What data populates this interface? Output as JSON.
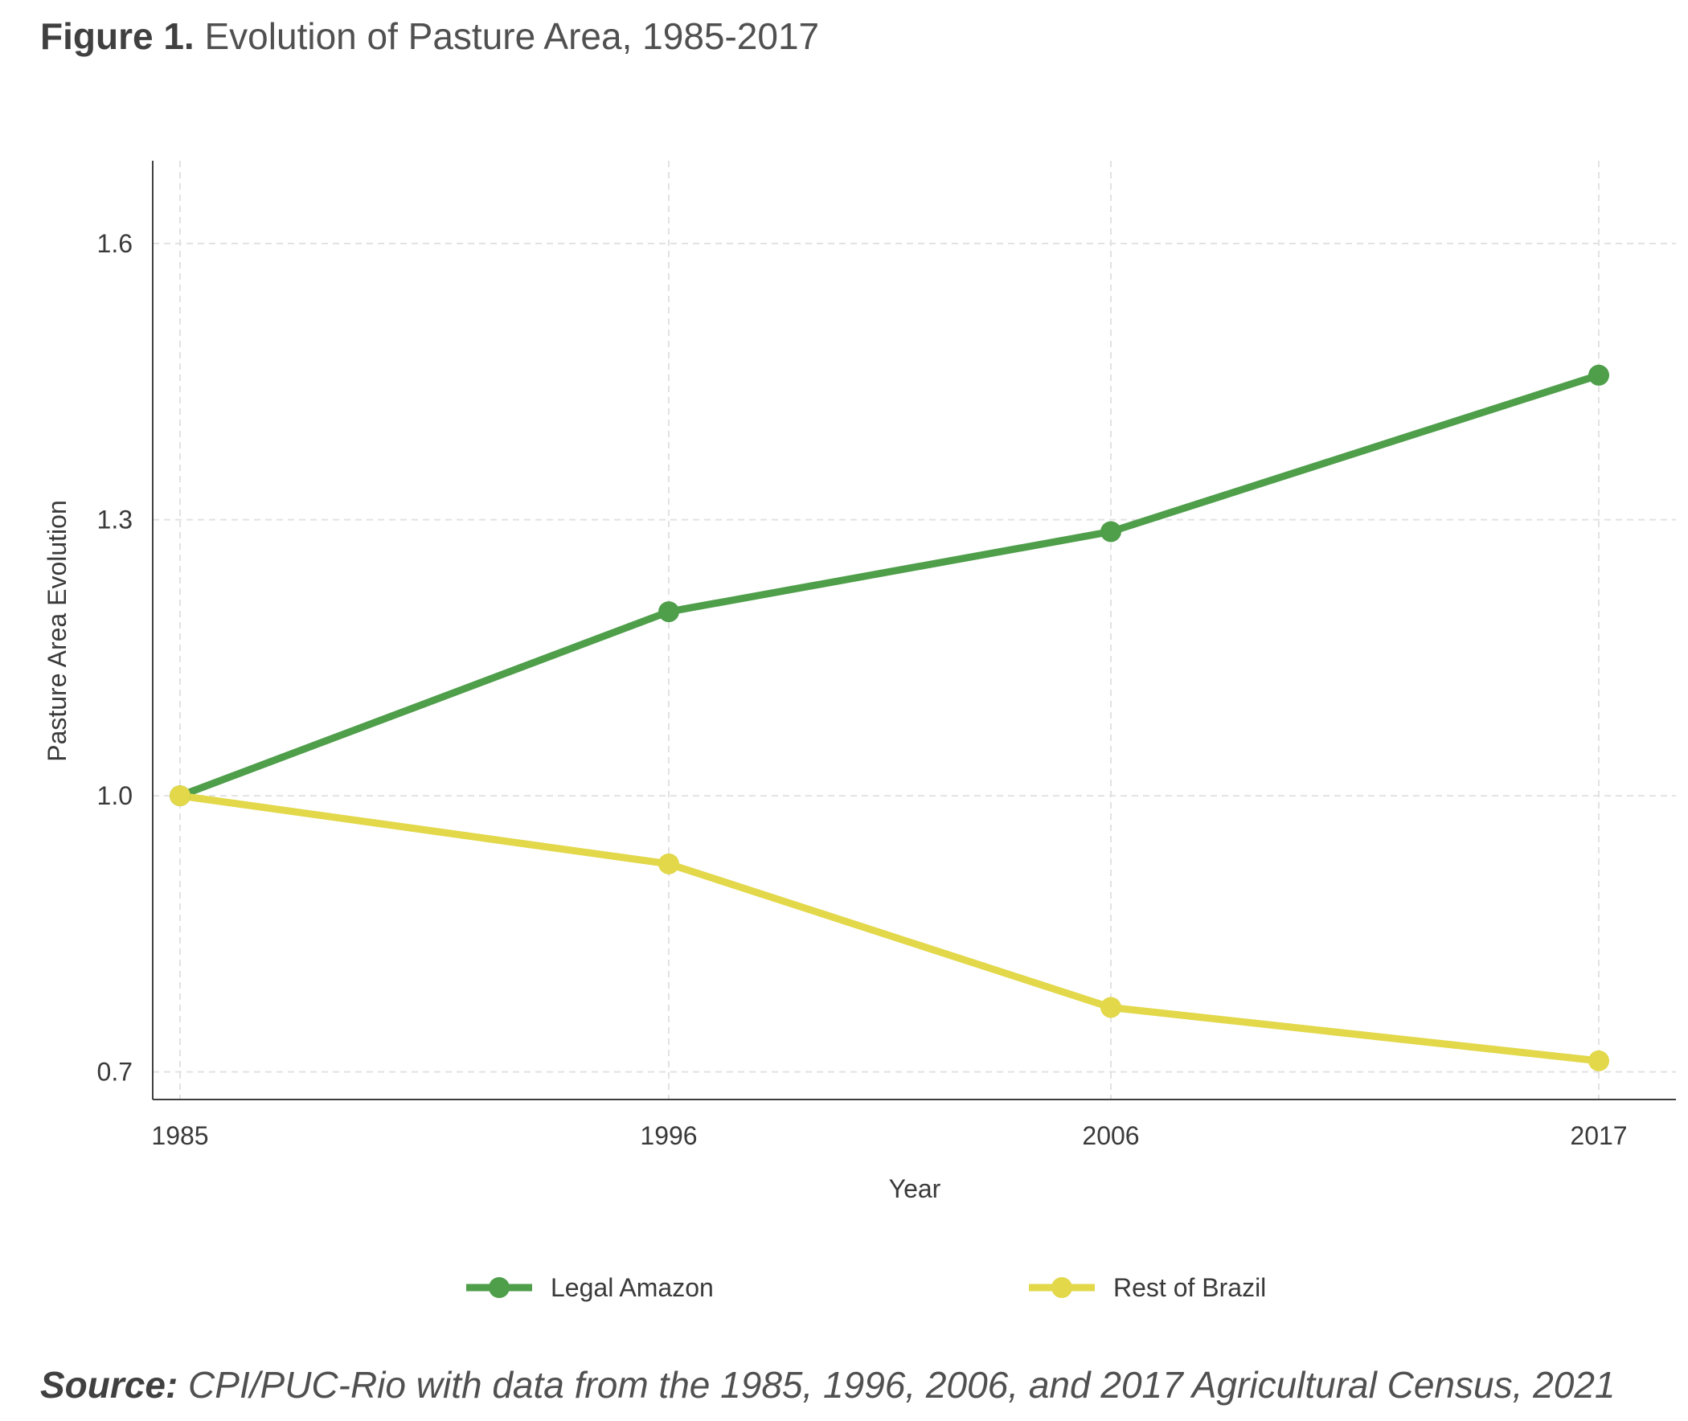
{
  "figure": {
    "label": "Figure 1.",
    "title_text": " Evolution of Pasture Area, 1985-2017"
  },
  "source": {
    "label": "Source:",
    "text": " CPI/PUC-Rio with data from the 1985, 1996, 2006, and 2017 Agricultural Census, 2021"
  },
  "chart_data": {
    "type": "line",
    "title": "Evolution of Pasture Area, 1985-2017",
    "xlabel": "Year",
    "ylabel": "Pasture Area Evolution",
    "x": [
      "1985",
      "1996",
      "2006",
      "2017"
    ],
    "yticks": [
      "0.7",
      "1.0",
      "1.3",
      "1.6"
    ],
    "ylim": [
      0.67,
      1.69
    ],
    "grid": true,
    "legend_position": "bottom",
    "series": [
      {
        "name": "Legal Amazon",
        "color": "#4e9e4a",
        "values": [
          1.0,
          1.2,
          1.287,
          1.457
        ]
      },
      {
        "name": "Rest of Brazil",
        "color": "#e2d84a",
        "values": [
          1.0,
          0.926,
          0.77,
          0.712
        ]
      }
    ]
  }
}
